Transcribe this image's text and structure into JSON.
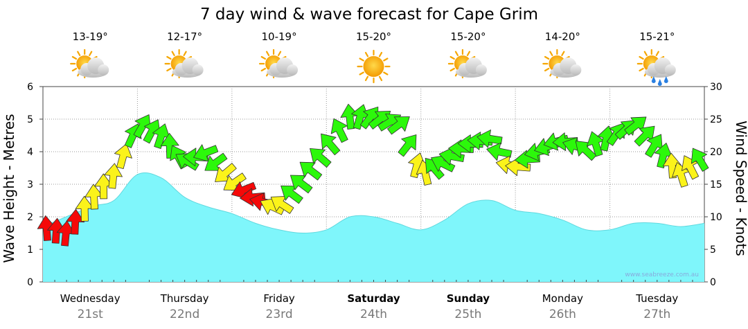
{
  "chart_data": {
    "type": "area",
    "title": "7 day wind & wave forecast for Cape Grim",
    "ylabel_left": "Wave Height - Metres",
    "ylabel_right": "Wind Speed - Knots",
    "ylim_left": [
      0,
      6
    ],
    "ylim_right": [
      0,
      30
    ],
    "left_ticks": [
      "0",
      "1",
      "2",
      "3",
      "4",
      "5",
      "6"
    ],
    "right_ticks": [
      "0",
      "5",
      "10",
      "15",
      "20",
      "25",
      "30"
    ],
    "days": [
      {
        "name": "Wednesday",
        "date": "21st",
        "temp": "13-19°",
        "weather": "partly-cloudy-icon",
        "bold": false
      },
      {
        "name": "Thursday",
        "date": "22nd",
        "temp": "12-17°",
        "weather": "partly-cloudy-icon",
        "bold": false
      },
      {
        "name": "Friday",
        "date": "23rd",
        "temp": "10-19°",
        "weather": "partly-cloudy-icon",
        "bold": false
      },
      {
        "name": "Saturday",
        "date": "24th",
        "temp": "15-20°",
        "weather": "sunny-icon",
        "bold": true
      },
      {
        "name": "Sunday",
        "date": "25th",
        "temp": "15-20°",
        "weather": "partly-cloudy-icon",
        "bold": true
      },
      {
        "name": "Monday",
        "date": "26th",
        "temp": "14-20°",
        "weather": "partly-cloudy-icon",
        "bold": false
      },
      {
        "name": "Tuesday",
        "date": "27th",
        "temp": "15-21°",
        "weather": "shower-icon",
        "bold": false
      }
    ],
    "wave_series": {
      "x_days": [
        0,
        0.5,
        0.75,
        1,
        1.25,
        1.5,
        1.75,
        2,
        2.25,
        2.5,
        2.75,
        3,
        3.25,
        3.5,
        3.75,
        4,
        4.25,
        4.5,
        4.75,
        5,
        5.25,
        5.5,
        5.75,
        6,
        6.25,
        6.5,
        6.75,
        7
      ],
      "values": [
        1.7,
        2.3,
        2.5,
        3.3,
        3.2,
        2.6,
        2.3,
        2.1,
        1.8,
        1.6,
        1.5,
        1.6,
        2.0,
        2.0,
        1.8,
        1.6,
        1.9,
        2.4,
        2.5,
        2.2,
        2.1,
        1.9,
        1.6,
        1.6,
        1.8,
        1.8,
        1.7,
        1.8
      ]
    },
    "wind_series": {
      "x_days": [
        0,
        0.25,
        0.5,
        0.75,
        1,
        1.25,
        1.5,
        1.75,
        2,
        2.25,
        2.5,
        2.75,
        3,
        3.25,
        3.5,
        3.75,
        4,
        4.25,
        4.5,
        4.75,
        5,
        5.25,
        5.5,
        5.75,
        6,
        6.25,
        6.5,
        6.75,
        7
      ],
      "knots": [
        8,
        7,
        12,
        16,
        24,
        22,
        18,
        20,
        16,
        13,
        11,
        15,
        20,
        25,
        25,
        24,
        16,
        18,
        21,
        22,
        17,
        20,
        22,
        20,
        22,
        24,
        20,
        16,
        19
      ],
      "colors": [
        "red",
        "red",
        "yellow",
        "yellow",
        "green",
        "green",
        "green",
        "green",
        "yellow",
        "red",
        "yellow",
        "green",
        "green",
        "green",
        "green",
        "green",
        "yellow",
        "green",
        "green",
        "green",
        "yellow",
        "green",
        "green",
        "green",
        "green",
        "green",
        "green",
        "yellow",
        "green"
      ]
    },
    "colors": {
      "wave": "#7ff6fb",
      "green": "#2cf80b",
      "yellow": "#fbf31a",
      "red": "#f50909"
    },
    "credit": "www.seabreeze.com.au"
  }
}
